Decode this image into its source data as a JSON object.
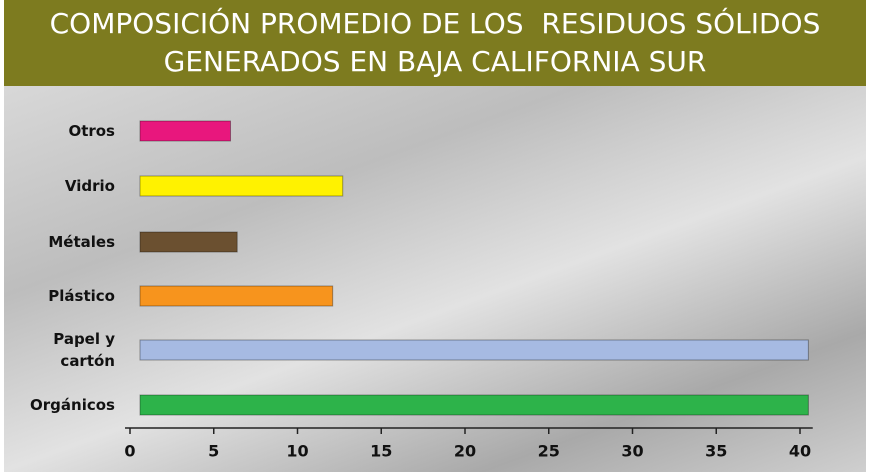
{
  "chart_data": {
    "type": "bar",
    "orientation": "horizontal",
    "title": [
      "COMPOSICIÓN PROMEDIO DE LOS  RESIDUOS SÓLIDOS",
      "GENERADOS EN BAJA CALIFORNIA SUR"
    ],
    "categories": [
      "Otros",
      "Vidrio",
      "Métales",
      "Plástico",
      "Papel y cartón",
      "Orgánicos"
    ],
    "values": [
      6,
      12.7,
      6.4,
      12.1,
      40.5,
      40.5
    ],
    "colors": [
      "#e8177d",
      "#fff200",
      "#6b5030",
      "#f7941d",
      "#a6bae2",
      "#2db34a"
    ],
    "xlim": [
      0,
      41
    ],
    "xticks": [
      0,
      5,
      10,
      15,
      20,
      25,
      30,
      35,
      40
    ]
  }
}
